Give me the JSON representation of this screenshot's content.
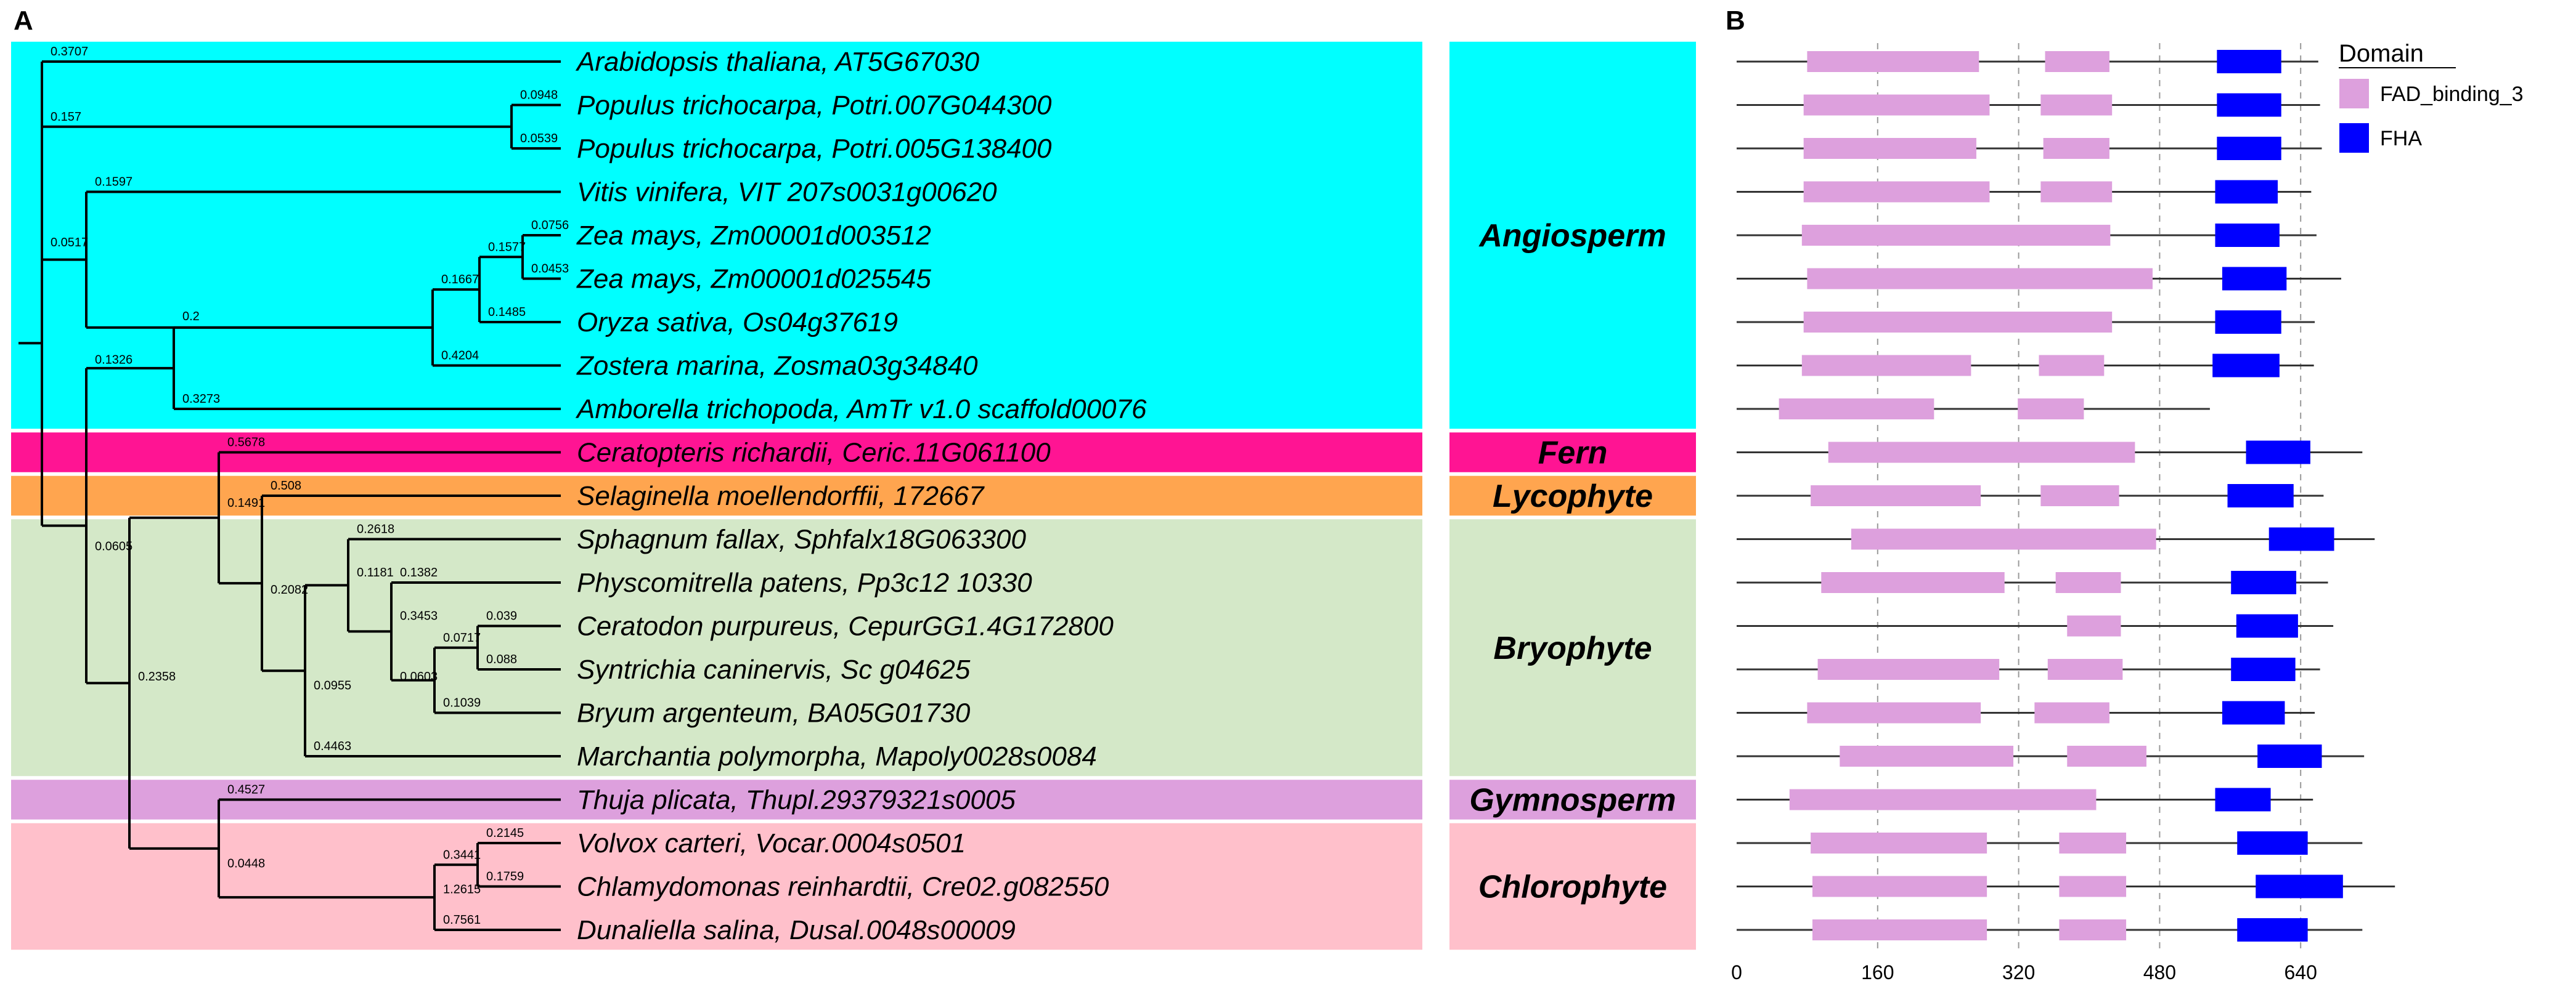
{
  "panels": {
    "a": "A",
    "b": "B"
  },
  "groups": [
    {
      "name": "Angiosperm",
      "color": "#00ffff",
      "from": 0,
      "to": 8
    },
    {
      "name": "Fern",
      "color": "#ff1493",
      "from": 9,
      "to": 9
    },
    {
      "name": "Lycophyte",
      "color": "#ffa54f",
      "from": 10,
      "to": 10
    },
    {
      "name": "Bryophyte",
      "color": "#d4e8c8",
      "from": 11,
      "to": 16
    },
    {
      "name": "Gymnosperm",
      "color": "#dda0dd",
      "from": 17,
      "to": 17
    },
    {
      "name": "Chlorophyte",
      "color": "#ffc0cb",
      "from": 18,
      "to": 20
    }
  ],
  "taxa": [
    "Arabidopsis thaliana, AT5G67030",
    "Populus trichocarpa, Potri.007G044300",
    "Populus trichocarpa, Potri.005G138400",
    "Vitis vinifera, VIT 207s0031g00620",
    "Zea mays, Zm00001d003512",
    "Zea mays, Zm00001d025545",
    "Oryza sativa, Os04g37619",
    "Zostera marina, Zosma03g34840",
    "Amborella trichopoda, AmTr v1.0 scaffold00076",
    "Ceratopteris richardii, Ceric.11G061100",
    "Selaginella moellendorffii, 172667",
    "Sphagnum fallax, Sphfalx18G063300",
    "Physcomitrella patens, Pp3c12 10330",
    "Ceratodon purpureus, CepurGG1.4G172800",
    "Syntrichia caninervis, Sc g04625",
    "Bryum argenteum, BA05G01730",
    "Marchantia polymorpha, Mapoly0028s0084",
    "Thuja plicata, Thupl.29379321s0005",
    "Volvox carteri, Vocar.0004s0501",
    "Chlamydomonas reinhardtii, Cre02.g082550",
    "Dunaliella salina, Dusal.0048s00009"
  ],
  "tree": {
    "nodes": [
      {
        "id": "root",
        "kids": [
          "nA",
          "n8"
        ]
      },
      {
        "id": "nA",
        "kids": [
          0,
          "nP",
          "nV"
        ]
      },
      {
        "id": "nP",
        "kids": [
          1,
          2
        ]
      },
      {
        "id": "nV",
        "kids": [
          3,
          "nM"
        ]
      },
      {
        "id": "nM",
        "kids": [
          "nG",
          7
        ]
      },
      {
        "id": "nG",
        "kids": [
          "nZ",
          6
        ]
      },
      {
        "id": "nZ",
        "kids": [
          4,
          5
        ]
      },
      {
        "id": "n8",
        "kids": [
          "n7",
          "n9"
        ]
      },
      {
        "id": "n7",
        "kids": [
          "nM",
          8
        ]
      },
      {
        "id": "n9",
        "kids": [
          "n10",
          "n13"
        ]
      },
      {
        "id": "n10",
        "kids": [
          9,
          "n11"
        ]
      },
      {
        "id": "n11",
        "kids": [
          10,
          "nB"
        ]
      },
      {
        "id": "nB",
        "kids": [
          "nB2",
          16
        ]
      },
      {
        "id": "nB2",
        "kids": [
          11,
          "nB3"
        ]
      },
      {
        "id": "nB3",
        "kids": [
          12,
          "nB4"
        ]
      },
      {
        "id": "nB4",
        "kids": [
          "nB5",
          15
        ]
      },
      {
        "id": "nB5",
        "kids": [
          13,
          14
        ]
      },
      {
        "id": "n13",
        "kids": [
          "n14",
          17
        ]
      },
      {
        "id": "n14",
        "kids": [
          "nC",
          20
        ]
      },
      {
        "id": "nC",
        "kids": [
          18,
          19
        ]
      }
    ],
    "branch_labels": [
      {
        "text": "0.3707",
        "row": 0,
        "at": "nA"
      },
      {
        "text": "0.0948",
        "row": 1,
        "at": "nP"
      },
      {
        "text": "0.0539",
        "row": 2,
        "at": "nP"
      },
      {
        "text": "0.157",
        "row": 1.5,
        "at": "nA"
      },
      {
        "text": "0.1597",
        "row": 3,
        "at": "nV"
      },
      {
        "text": "0.0756",
        "row": 4,
        "at": "nZ"
      },
      {
        "text": "0.0453",
        "row": 5,
        "at": "nZ"
      },
      {
        "text": "0.1577",
        "row": 4.5,
        "at": "nG"
      },
      {
        "text": "0.1485",
        "row": 6,
        "at": "nG"
      },
      {
        "text": "0.1667",
        "row": 5.25,
        "at": "nM"
      },
      {
        "text": "0.4204",
        "row": 7,
        "at": "nM"
      },
      {
        "text": "0.2",
        "row": 6.1,
        "at": "n7"
      },
      {
        "text": "0.3273",
        "row": 8,
        "at": "n7"
      },
      {
        "text": "0.0517",
        "row": 4.4,
        "at": "root"
      },
      {
        "text": "0.1326",
        "row": 7.1,
        "at": "n8"
      },
      {
        "text": "0.5678",
        "row": 9,
        "at": "n10"
      },
      {
        "text": "0.508",
        "row": 10,
        "at": "n11"
      },
      {
        "text": "0.1491",
        "row": 10.4,
        "at": "n10"
      },
      {
        "text": "0.2618",
        "row": 11,
        "at": "nB2"
      },
      {
        "text": "0.1382",
        "row": 12,
        "at": "nB3"
      },
      {
        "text": "0.039",
        "row": 13,
        "at": "nB5"
      },
      {
        "text": "0.088",
        "row": 14,
        "at": "nB5"
      },
      {
        "text": "0.0717",
        "row": 13.5,
        "at": "nB4"
      },
      {
        "text": "0.1039",
        "row": 15,
        "at": "nB4"
      },
      {
        "text": "0.3453",
        "row": 13,
        "at": "nB3"
      },
      {
        "text": "0.1181",
        "row": 12,
        "at": "nB2"
      },
      {
        "text": "0.0603",
        "row": 14.4,
        "at": "nB3"
      },
      {
        "text": "0.0955",
        "row": 14.6,
        "at": "nB"
      },
      {
        "text": "0.4463",
        "row": 16,
        "at": "nB"
      },
      {
        "text": "0.2082",
        "row": 12.4,
        "at": "n11"
      },
      {
        "text": "0.0605",
        "row": 11.4,
        "at": "n8"
      },
      {
        "text": "0.2358",
        "row": 14.4,
        "at": "n9"
      },
      {
        "text": "0.4527",
        "row": 17,
        "at": "n13"
      },
      {
        "text": "0.2145",
        "row": 18,
        "at": "nC"
      },
      {
        "text": "0.1759",
        "row": 19,
        "at": "nC"
      },
      {
        "text": "0.3441",
        "row": 18.5,
        "at": "n14"
      },
      {
        "text": "1.2615",
        "row": 19.3,
        "at": "n14"
      },
      {
        "text": "0.7561",
        "row": 20,
        "at": "n14"
      },
      {
        "text": "0.0448",
        "row": 18.7,
        "at": "n13"
      }
    ]
  },
  "domains": {
    "legend_title": "Domain",
    "types": [
      {
        "name": "FAD_binding_3",
        "color": "#dda0dd"
      },
      {
        "name": "FHA",
        "color": "#0000ff"
      }
    ],
    "axis_ticks": [
      0,
      160,
      320,
      480,
      640
    ],
    "axis_max": 760,
    "proteins": [
      {
        "length": 660,
        "domains": [
          [
            80,
            275,
            "FAD_binding_3"
          ],
          [
            350,
            423,
            "FAD_binding_3"
          ],
          [
            545,
            618,
            "FHA"
          ]
        ]
      },
      {
        "length": 662,
        "domains": [
          [
            76,
            287,
            "FAD_binding_3"
          ],
          [
            345,
            426,
            "FAD_binding_3"
          ],
          [
            545,
            618,
            "FHA"
          ]
        ]
      },
      {
        "length": 664,
        "domains": [
          [
            76,
            272,
            "FAD_binding_3"
          ],
          [
            348,
            423,
            "FAD_binding_3"
          ],
          [
            545,
            618,
            "FHA"
          ]
        ]
      },
      {
        "length": 652,
        "domains": [
          [
            76,
            287,
            "FAD_binding_3"
          ],
          [
            345,
            426,
            "FAD_binding_3"
          ],
          [
            543,
            614,
            "FHA"
          ]
        ]
      },
      {
        "length": 658,
        "domains": [
          [
            74,
            424,
            "FAD_binding_3"
          ],
          [
            543,
            616,
            "FHA"
          ]
        ]
      },
      {
        "length": 686,
        "domains": [
          [
            80,
            472,
            "FAD_binding_3"
          ],
          [
            551,
            624,
            "FHA"
          ]
        ]
      },
      {
        "length": 656,
        "domains": [
          [
            76,
            426,
            "FAD_binding_3"
          ],
          [
            543,
            618,
            "FHA"
          ]
        ]
      },
      {
        "length": 655,
        "domains": [
          [
            74,
            266,
            "FAD_binding_3"
          ],
          [
            343,
            417,
            "FAD_binding_3"
          ],
          [
            540,
            616,
            "FHA"
          ]
        ]
      },
      {
        "length": 537,
        "domains": [
          [
            48,
            224,
            "FAD_binding_3"
          ],
          [
            319,
            394,
            "FAD_binding_3"
          ]
        ]
      },
      {
        "length": 710,
        "domains": [
          [
            104,
            452,
            "FAD_binding_3"
          ],
          [
            578,
            651,
            "FHA"
          ]
        ]
      },
      {
        "length": 666,
        "domains": [
          [
            84,
            277,
            "FAD_binding_3"
          ],
          [
            345,
            434,
            "FAD_binding_3"
          ],
          [
            557,
            632,
            "FHA"
          ]
        ]
      },
      {
        "length": 724,
        "domains": [
          [
            130,
            476,
            "FAD_binding_3"
          ],
          [
            604,
            678,
            "FHA"
          ]
        ]
      },
      {
        "length": 671,
        "domains": [
          [
            96,
            304,
            "FAD_binding_3"
          ],
          [
            362,
            436,
            "FAD_binding_3"
          ],
          [
            561,
            635,
            "FHA"
          ]
        ]
      },
      {
        "length": 677,
        "domains": [
          [
            375,
            436,
            "FAD_binding_3"
          ],
          [
            567,
            637,
            "FHA"
          ]
        ]
      },
      {
        "length": 662,
        "domains": [
          [
            92,
            298,
            "FAD_binding_3"
          ],
          [
            353,
            438,
            "FAD_binding_3"
          ],
          [
            561,
            634,
            "FHA"
          ]
        ]
      },
      {
        "length": 656,
        "domains": [
          [
            80,
            277,
            "FAD_binding_3"
          ],
          [
            338,
            423,
            "FAD_binding_3"
          ],
          [
            551,
            622,
            "FHA"
          ]
        ]
      },
      {
        "length": 712,
        "domains": [
          [
            117,
            314,
            "FAD_binding_3"
          ],
          [
            375,
            465,
            "FAD_binding_3"
          ],
          [
            591,
            664,
            "FHA"
          ]
        ]
      },
      {
        "length": 654,
        "domains": [
          [
            60,
            408,
            "FAD_binding_3"
          ],
          [
            543,
            606,
            "FHA"
          ]
        ]
      },
      {
        "length": 710,
        "domains": [
          [
            84,
            284,
            "FAD_binding_3"
          ],
          [
            366,
            442,
            "FAD_binding_3"
          ],
          [
            568,
            648,
            "FHA"
          ]
        ]
      },
      {
        "length": 747,
        "domains": [
          [
            86,
            284,
            "FAD_binding_3"
          ],
          [
            366,
            442,
            "FAD_binding_3"
          ],
          [
            589,
            688,
            "FHA"
          ]
        ]
      },
      {
        "length": 710,
        "domains": [
          [
            86,
            284,
            "FAD_binding_3"
          ],
          [
            366,
            442,
            "FAD_binding_3"
          ],
          [
            568,
            648,
            "FHA"
          ]
        ]
      }
    ]
  }
}
